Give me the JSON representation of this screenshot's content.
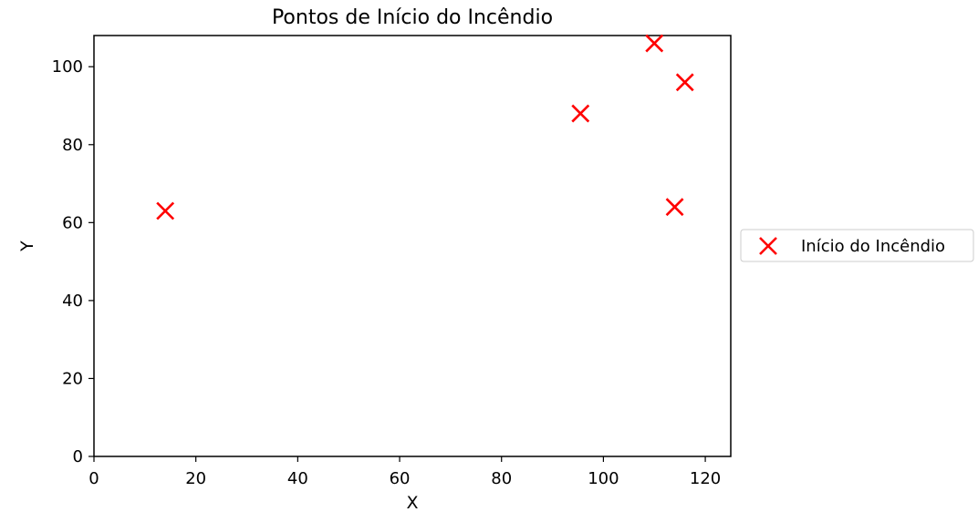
{
  "chart_data": {
    "type": "scatter",
    "title": "Pontos de Início do Incêndio",
    "xlabel": "X",
    "ylabel": "Y",
    "xlim": [
      0,
      125
    ],
    "ylim": [
      0,
      108
    ],
    "xticks": [
      0,
      20,
      40,
      60,
      80,
      100,
      120
    ],
    "yticks": [
      0,
      20,
      40,
      60,
      80,
      100
    ],
    "grid": false,
    "legend_position": "center right, outside plot",
    "series": [
      {
        "name": "Início do Incêndio",
        "marker": "x",
        "color": "#ff0000",
        "points": [
          {
            "x": 14,
            "y": 63
          },
          {
            "x": 95.5,
            "y": 88
          },
          {
            "x": 110,
            "y": 106
          },
          {
            "x": 116,
            "y": 96
          },
          {
            "x": 114,
            "y": 64
          }
        ]
      }
    ]
  }
}
